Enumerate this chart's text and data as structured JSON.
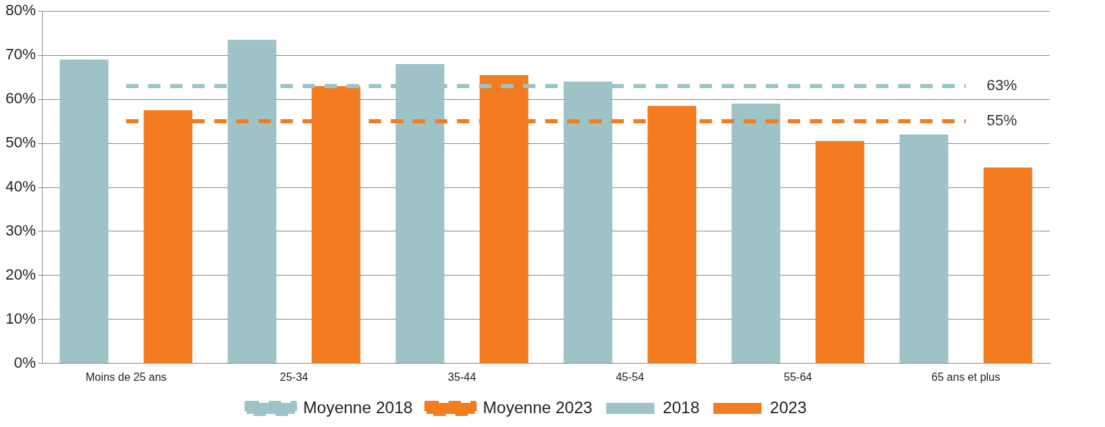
{
  "chart_data": {
    "type": "bar",
    "categories": [
      "Moins de 25 ans",
      "25-34",
      "35-44",
      "45-54",
      "55-64",
      "65 ans et plus"
    ],
    "series": [
      {
        "name": "2018",
        "color": "#9dc3c6",
        "values": [
          69,
          73.5,
          68,
          64,
          59,
          52
        ]
      },
      {
        "name": "2023",
        "color": "#f47c20",
        "values": [
          57.5,
          63,
          65.5,
          58.5,
          50.5,
          44.5
        ]
      },
      {
        "name": "Moyenne 2018",
        "type": "line",
        "color": "#9dc3c6",
        "line_style": "dashed",
        "marker": "none",
        "values": [
          63,
          63,
          63,
          63,
          63,
          63
        ],
        "value_labels": [
          null,
          null,
          null,
          null,
          null,
          "63%"
        ]
      },
      {
        "name": "Moyenne 2023",
        "type": "line",
        "color": "#f47c20",
        "line_style": "dashed",
        "marker": "none",
        "values": [
          55,
          55,
          55,
          55,
          55,
          55
        ],
        "value_labels": [
          null,
          null,
          null,
          null,
          null,
          "55%"
        ]
      }
    ],
    "ylim": [
      0,
      80
    ],
    "yticks": [
      {
        "value": 0,
        "label": "0%"
      },
      {
        "value": 10,
        "label": "10%"
      },
      {
        "value": 20,
        "label": "20%"
      },
      {
        "value": 30,
        "label": "30%"
      },
      {
        "value": 40,
        "label": "40%"
      },
      {
        "value": 50,
        "label": "50%"
      },
      {
        "value": 60,
        "label": "60%"
      },
      {
        "value": 70,
        "label": "70%"
      },
      {
        "value": 80,
        "label": "80%"
      }
    ],
    "grid": "y",
    "legend": "bottom"
  }
}
